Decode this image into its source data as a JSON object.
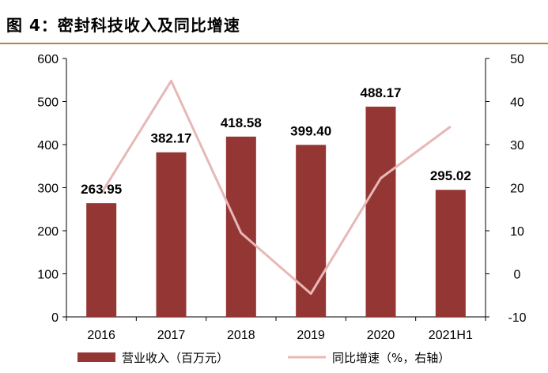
{
  "figure_title": "图 4：密封科技收入及同比增速",
  "colors": {
    "bar": "#943634",
    "line": "#e6b8b7",
    "title_rule": "#b08a3e"
  },
  "chart_data": {
    "type": "bar",
    "categories": [
      "2016",
      "2017",
      "2018",
      "2019",
      "2020",
      "2021H1"
    ],
    "series": [
      {
        "name": "营业收入（百万元）",
        "type": "bar",
        "axis": "left",
        "values": [
          263.95,
          382.17,
          418.58,
          399.4,
          488.17,
          295.02
        ],
        "labels": [
          "263.95",
          "382.17",
          "418.58",
          "399.40",
          "488.17",
          "295.02"
        ]
      },
      {
        "name": "同比增速（%，右轴）",
        "type": "line",
        "axis": "right",
        "values": [
          18.7,
          44.8,
          9.5,
          -4.6,
          22.2,
          34.2
        ]
      }
    ],
    "ylim": [
      0,
      600
    ],
    "yticks": [
      "0",
      "100",
      "200",
      "300",
      "400",
      "500",
      "600"
    ],
    "y2lim": [
      -10,
      50
    ],
    "y2ticks": [
      "-10",
      "0",
      "10",
      "20",
      "30",
      "40",
      "50"
    ],
    "grid": false,
    "legend_position": "bottom"
  }
}
